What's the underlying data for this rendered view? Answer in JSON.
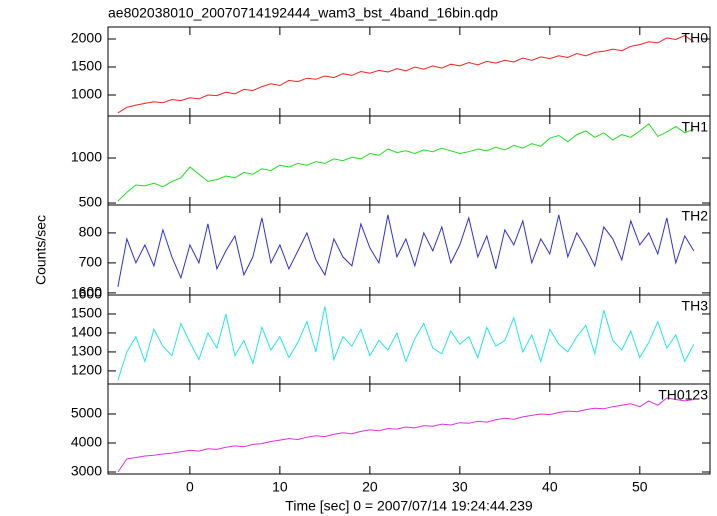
{
  "chart_data": [
    {
      "type": "line",
      "title": "ae802038010_20070714192444_wam3_bst_4band_16bin.qdp",
      "label": "TH0",
      "color": "#ff2020",
      "xlim": [
        -9.1,
        57.8
      ],
      "ylim": [
        625,
        2214
      ],
      "yticks": [
        1000,
        1500,
        2000
      ],
      "x": [
        -8,
        -7,
        -6,
        -5,
        -4,
        -3,
        -2,
        -1,
        0,
        1,
        2,
        3,
        4,
        5,
        6,
        7,
        8,
        9,
        10,
        11,
        12,
        13,
        14,
        15,
        16,
        17,
        18,
        19,
        20,
        21,
        22,
        23,
        24,
        25,
        26,
        27,
        28,
        29,
        30,
        31,
        32,
        33,
        34,
        35,
        36,
        37,
        38,
        39,
        40,
        41,
        42,
        43,
        44,
        45,
        46,
        47,
        48,
        49,
        50,
        51,
        52,
        53,
        54,
        55,
        56
      ],
      "values": [
        680,
        780,
        820,
        850,
        880,
        860,
        920,
        900,
        950,
        930,
        1000,
        990,
        1050,
        1020,
        1100,
        1080,
        1150,
        1200,
        1170,
        1260,
        1240,
        1300,
        1280,
        1340,
        1310,
        1380,
        1350,
        1420,
        1390,
        1440,
        1410,
        1470,
        1430,
        1500,
        1460,
        1520,
        1480,
        1550,
        1520,
        1580,
        1540,
        1600,
        1570,
        1620,
        1590,
        1660,
        1620,
        1680,
        1650,
        1700,
        1670,
        1740,
        1700,
        1760,
        1780,
        1820,
        1790,
        1870,
        1900,
        1950,
        1930,
        2020,
        1990,
        2060,
        1950
      ]
    },
    {
      "type": "line",
      "label": "TH1",
      "color": "#20e020",
      "xlim": [
        -9.1,
        57.8
      ],
      "ylim": [
        478,
        1467
      ],
      "yticks": [
        500,
        1000
      ],
      "x": [
        -8,
        -7,
        -6,
        -5,
        -4,
        -3,
        -2,
        -1,
        0,
        1,
        2,
        3,
        4,
        5,
        6,
        7,
        8,
        9,
        10,
        11,
        12,
        13,
        14,
        15,
        16,
        17,
        18,
        19,
        20,
        21,
        22,
        23,
        24,
        25,
        26,
        27,
        28,
        29,
        30,
        31,
        32,
        33,
        34,
        35,
        36,
        37,
        38,
        39,
        40,
        41,
        42,
        43,
        44,
        45,
        46,
        47,
        48,
        49,
        50,
        51,
        52,
        53,
        54,
        55,
        56
      ],
      "values": [
        520,
        620,
        700,
        690,
        720,
        680,
        740,
        780,
        900,
        820,
        740,
        760,
        800,
        780,
        840,
        820,
        880,
        860,
        920,
        900,
        940,
        920,
        960,
        940,
        990,
        970,
        1010,
        990,
        1050,
        1030,
        1100,
        1060,
        1080,
        1050,
        1090,
        1070,
        1110,
        1080,
        1050,
        1070,
        1100,
        1080,
        1120,
        1090,
        1140,
        1110,
        1160,
        1130,
        1220,
        1250,
        1180,
        1260,
        1300,
        1230,
        1280,
        1200,
        1260,
        1230,
        1300,
        1380,
        1240,
        1290,
        1350,
        1280,
        1320
      ]
    },
    {
      "type": "line",
      "label": "TH2",
      "ylabel": "Counts/sec",
      "color": "#3030e0",
      "xlim": [
        -9.1,
        57.8
      ],
      "ylim": [
        593,
        893
      ],
      "yticks": [
        600,
        700,
        800
      ],
      "x": [
        -8,
        -7,
        -6,
        -5,
        -4,
        -3,
        -2,
        -1,
        0,
        1,
        2,
        3,
        4,
        5,
        6,
        7,
        8,
        9,
        10,
        11,
        12,
        13,
        14,
        15,
        16,
        17,
        18,
        19,
        20,
        21,
        22,
        23,
        24,
        25,
        26,
        27,
        28,
        29,
        30,
        31,
        32,
        33,
        34,
        35,
        36,
        37,
        38,
        39,
        40,
        41,
        42,
        43,
        44,
        45,
        46,
        47,
        48,
        49,
        50,
        51,
        52,
        53,
        54,
        55,
        56
      ],
      "values": [
        620,
        780,
        700,
        760,
        690,
        810,
        720,
        650,
        760,
        700,
        830,
        680,
        740,
        790,
        660,
        720,
        850,
        700,
        760,
        680,
        740,
        800,
        710,
        660,
        780,
        720,
        690,
        830,
        750,
        700,
        860,
        720,
        780,
        690,
        800,
        740,
        820,
        700,
        760,
        850,
        720,
        790,
        680,
        810,
        760,
        840,
        700,
        780,
        730,
        860,
        720,
        800,
        750,
        690,
        820,
        780,
        710,
        840,
        760,
        800,
        730,
        850,
        700,
        790,
        740
      ]
    },
    {
      "type": "line",
      "label": "TH3",
      "color": "#20e8e8",
      "xlim": [
        -9.1,
        57.8
      ],
      "ylim": [
        1131,
        1600
      ],
      "yticks": [
        1200,
        1300,
        1400,
        1500,
        1600
      ],
      "x": [
        -8,
        -7,
        -6,
        -5,
        -4,
        -3,
        -2,
        -1,
        0,
        1,
        2,
        3,
        4,
        5,
        6,
        7,
        8,
        9,
        10,
        11,
        12,
        13,
        14,
        15,
        16,
        17,
        18,
        19,
        20,
        21,
        22,
        23,
        24,
        25,
        26,
        27,
        28,
        29,
        30,
        31,
        32,
        33,
        34,
        35,
        36,
        37,
        38,
        39,
        40,
        41,
        42,
        43,
        44,
        45,
        46,
        47,
        48,
        49,
        50,
        51,
        52,
        53,
        54,
        55,
        56
      ],
      "values": [
        1150,
        1300,
        1380,
        1250,
        1420,
        1330,
        1280,
        1450,
        1350,
        1260,
        1400,
        1320,
        1500,
        1280,
        1360,
        1240,
        1430,
        1310,
        1380,
        1270,
        1350,
        1460,
        1300,
        1540,
        1260,
        1380,
        1330,
        1420,
        1280,
        1360,
        1310,
        1400,
        1250,
        1370,
        1450,
        1320,
        1290,
        1410,
        1340,
        1380,
        1270,
        1430,
        1330,
        1360,
        1480,
        1300,
        1390,
        1250,
        1420,
        1340,
        1300,
        1380,
        1440,
        1290,
        1520,
        1360,
        1310,
        1410,
        1270,
        1350,
        1460,
        1320,
        1390,
        1250,
        1340
      ]
    },
    {
      "type": "line",
      "label": "TH0123",
      "xlabel": "Time [sec] 0 = 2007/07/14 19:24:44.239",
      "color": "#e030e0",
      "xlim": [
        -9.1,
        57.8
      ],
      "ylim": [
        2931,
        6034
      ],
      "yticks": [
        3000,
        4000,
        5000
      ],
      "xticks": [
        0,
        10,
        20,
        30,
        40,
        50
      ],
      "x": [
        -8,
        -7,
        -6,
        -5,
        -4,
        -3,
        -2,
        -1,
        0,
        1,
        2,
        3,
        4,
        5,
        6,
        7,
        8,
        9,
        10,
        11,
        12,
        13,
        14,
        15,
        16,
        17,
        18,
        19,
        20,
        21,
        22,
        23,
        24,
        25,
        26,
        27,
        28,
        29,
        30,
        31,
        32,
        33,
        34,
        35,
        36,
        37,
        38,
        39,
        40,
        41,
        42,
        43,
        44,
        45,
        46,
        47,
        48,
        49,
        50,
        51,
        52,
        53,
        54,
        55,
        56
      ],
      "values": [
        3000,
        3450,
        3500,
        3550,
        3580,
        3620,
        3650,
        3700,
        3750,
        3720,
        3800,
        3780,
        3850,
        3900,
        3870,
        3950,
        3980,
        4050,
        4100,
        4150,
        4120,
        4200,
        4250,
        4220,
        4300,
        4350,
        4320,
        4400,
        4450,
        4420,
        4500,
        4480,
        4550,
        4520,
        4600,
        4580,
        4650,
        4620,
        4700,
        4680,
        4750,
        4720,
        4800,
        4850,
        4820,
        4900,
        4950,
        5000,
        4980,
        5050,
        5100,
        5080,
        5150,
        5200,
        5180,
        5250,
        5300,
        5350,
        5250,
        5450,
        5300,
        5550,
        5500,
        5450,
        5500
      ]
    }
  ]
}
